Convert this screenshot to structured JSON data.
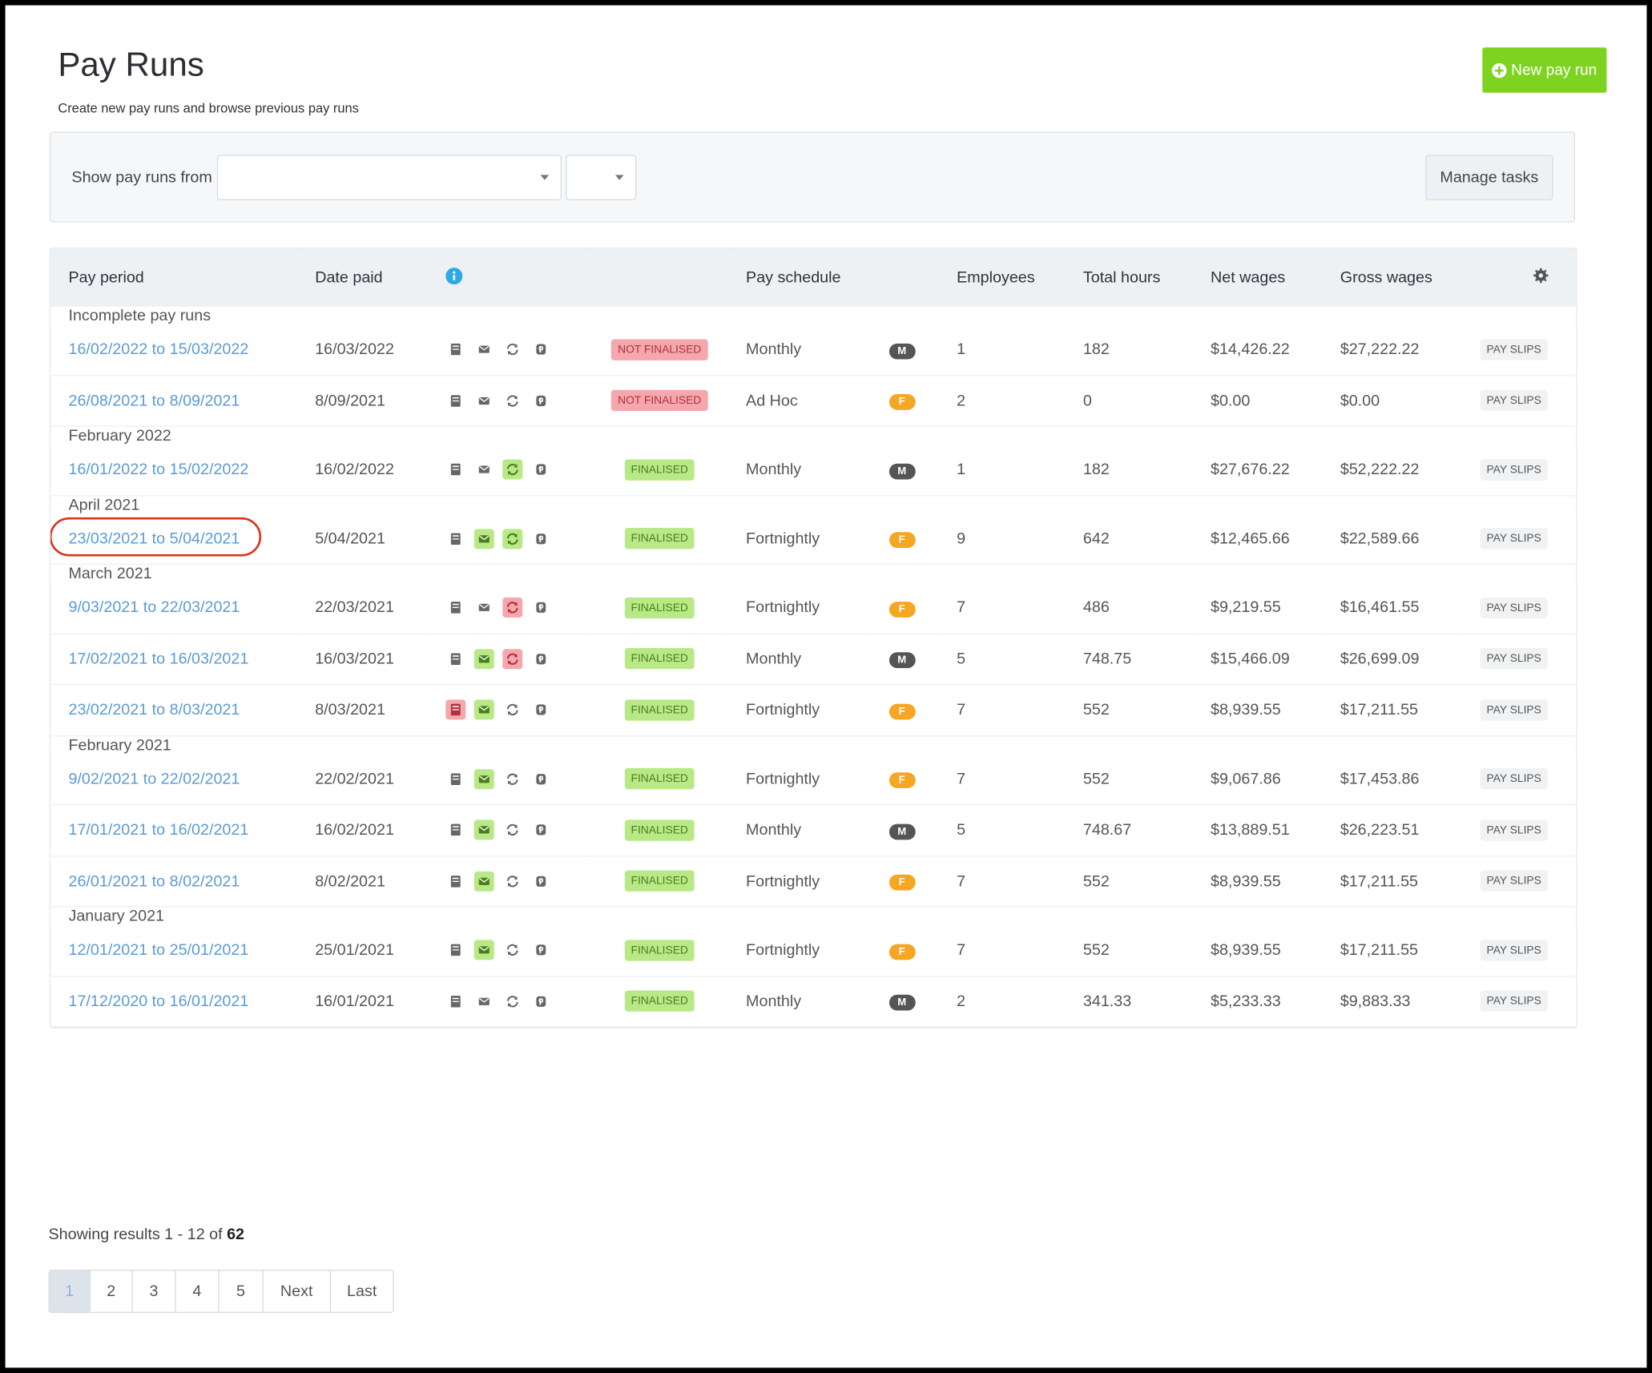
{
  "header": {
    "title": "Pay Runs",
    "subtitle": "Create new pay runs and browse previous pay runs",
    "new_button": "New pay run"
  },
  "filter": {
    "label": "Show pay runs from",
    "manage_button": "Manage tasks"
  },
  "table": {
    "columns": [
      "Pay period",
      "Date paid",
      "Pay schedule",
      "Employees",
      "Total hours",
      "Net wages",
      "Gross wages"
    ],
    "groups": [
      {
        "title": "Incomplete pay runs",
        "rows": [
          {
            "period": "16/02/2022 to 15/03/2022",
            "date_paid": "16/03/2022",
            "icons": [
              "default",
              "default",
              "default",
              "default"
            ],
            "status": "NOT FINALISED",
            "status_tone": "danger",
            "schedule": "Monthly",
            "schedule_code": "M",
            "schedule_tone": "dark",
            "employees": 1,
            "hours": 182,
            "net": "$14,426.22",
            "gross": "$27,222.22",
            "action": "PAY SLIPS"
          },
          {
            "period": "26/08/2021 to 8/09/2021",
            "date_paid": "8/09/2021",
            "icons": [
              "default",
              "default",
              "default",
              "default"
            ],
            "status": "NOT FINALISED",
            "status_tone": "danger",
            "schedule": "Ad Hoc",
            "schedule_code": "F",
            "schedule_tone": "orange",
            "employees": 2,
            "hours": 0,
            "net": "$0.00",
            "gross": "$0.00",
            "action": "PAY SLIPS"
          }
        ]
      },
      {
        "title": "February 2022",
        "rows": [
          {
            "period": "16/01/2022 to 15/02/2022",
            "date_paid": "16/02/2022",
            "icons": [
              "default",
              "default",
              "green",
              "default"
            ],
            "status": "FINALISED",
            "status_tone": "success",
            "schedule": "Monthly",
            "schedule_code": "M",
            "schedule_tone": "dark",
            "employees": 1,
            "hours": 182,
            "net": "$27,676.22",
            "gross": "$52,222.22",
            "action": "PAY SLIPS"
          }
        ]
      },
      {
        "title": "April 2021",
        "rows": [
          {
            "period": "23/03/2021 to 5/04/2021",
            "date_paid": "5/04/2021",
            "icons": [
              "default",
              "green",
              "green",
              "default"
            ],
            "status": "FINALISED",
            "status_tone": "success",
            "schedule": "Fortnightly",
            "schedule_code": "F",
            "schedule_tone": "orange",
            "employees": 9,
            "hours": 642,
            "net": "$12,465.66",
            "gross": "$22,589.66",
            "action": "PAY SLIPS",
            "highlighted": true
          }
        ]
      },
      {
        "title": "March 2021",
        "rows": [
          {
            "period": "9/03/2021 to 22/03/2021",
            "date_paid": "22/03/2021",
            "icons": [
              "default",
              "default",
              "red",
              "default"
            ],
            "status": "FINALISED",
            "status_tone": "success",
            "schedule": "Fortnightly",
            "schedule_code": "F",
            "schedule_tone": "orange",
            "employees": 7,
            "hours": 486,
            "net": "$9,219.55",
            "gross": "$16,461.55",
            "action": "PAY SLIPS"
          },
          {
            "period": "17/02/2021 to 16/03/2021",
            "date_paid": "16/03/2021",
            "icons": [
              "default",
              "green",
              "red",
              "default"
            ],
            "status": "FINALISED",
            "status_tone": "success",
            "schedule": "Monthly",
            "schedule_code": "M",
            "schedule_tone": "dark",
            "employees": 5,
            "hours": 748.75,
            "net": "$15,466.09",
            "gross": "$26,699.09",
            "action": "PAY SLIPS"
          },
          {
            "period": "23/02/2021 to 8/03/2021",
            "date_paid": "8/03/2021",
            "icons": [
              "red",
              "green",
              "default",
              "default"
            ],
            "status": "FINALISED",
            "status_tone": "success",
            "schedule": "Fortnightly",
            "schedule_code": "F",
            "schedule_tone": "orange",
            "employees": 7,
            "hours": 552,
            "net": "$8,939.55",
            "gross": "$17,211.55",
            "action": "PAY SLIPS"
          }
        ]
      },
      {
        "title": "February 2021",
        "rows": [
          {
            "period": "9/02/2021 to 22/02/2021",
            "date_paid": "22/02/2021",
            "icons": [
              "default",
              "green",
              "default",
              "default"
            ],
            "status": "FINALISED",
            "status_tone": "success",
            "schedule": "Fortnightly",
            "schedule_code": "F",
            "schedule_tone": "orange",
            "employees": 7,
            "hours": 552,
            "net": "$9,067.86",
            "gross": "$17,453.86",
            "action": "PAY SLIPS"
          },
          {
            "period": "17/01/2021 to 16/02/2021",
            "date_paid": "16/02/2021",
            "icons": [
              "default",
              "green",
              "default",
              "default"
            ],
            "status": "FINALISED",
            "status_tone": "success",
            "schedule": "Monthly",
            "schedule_code": "M",
            "schedule_tone": "dark",
            "employees": 5,
            "hours": 748.67,
            "net": "$13,889.51",
            "gross": "$26,223.51",
            "action": "PAY SLIPS"
          },
          {
            "period": "26/01/2021 to 8/02/2021",
            "date_paid": "8/02/2021",
            "icons": [
              "default",
              "green",
              "default",
              "default"
            ],
            "status": "FINALISED",
            "status_tone": "success",
            "schedule": "Fortnightly",
            "schedule_code": "F",
            "schedule_tone": "orange",
            "employees": 7,
            "hours": 552,
            "net": "$8,939.55",
            "gross": "$17,211.55",
            "action": "PAY SLIPS"
          }
        ]
      },
      {
        "title": "January 2021",
        "rows": [
          {
            "period": "12/01/2021 to 25/01/2021",
            "date_paid": "25/01/2021",
            "icons": [
              "default",
              "green",
              "default",
              "default"
            ],
            "status": "FINALISED",
            "status_tone": "success",
            "schedule": "Fortnightly",
            "schedule_code": "F",
            "schedule_tone": "orange",
            "employees": 7,
            "hours": 552,
            "net": "$8,939.55",
            "gross": "$17,211.55",
            "action": "PAY SLIPS"
          },
          {
            "period": "17/12/2020 to 16/01/2021",
            "date_paid": "16/01/2021",
            "icons": [
              "default",
              "default",
              "default",
              "default"
            ],
            "status": "FINALISED",
            "status_tone": "success",
            "schedule": "Monthly",
            "schedule_code": "M",
            "schedule_tone": "dark",
            "employees": 2,
            "hours": 341.33,
            "net": "$5,233.33",
            "gross": "$9,883.33",
            "action": "PAY SLIPS"
          }
        ]
      }
    ]
  },
  "footer": {
    "results_text": "Showing results 1 - 12 of",
    "results_total": "62",
    "pages": [
      "1",
      "2",
      "3",
      "4",
      "5",
      "Next",
      "Last"
    ],
    "active_page": 0
  }
}
